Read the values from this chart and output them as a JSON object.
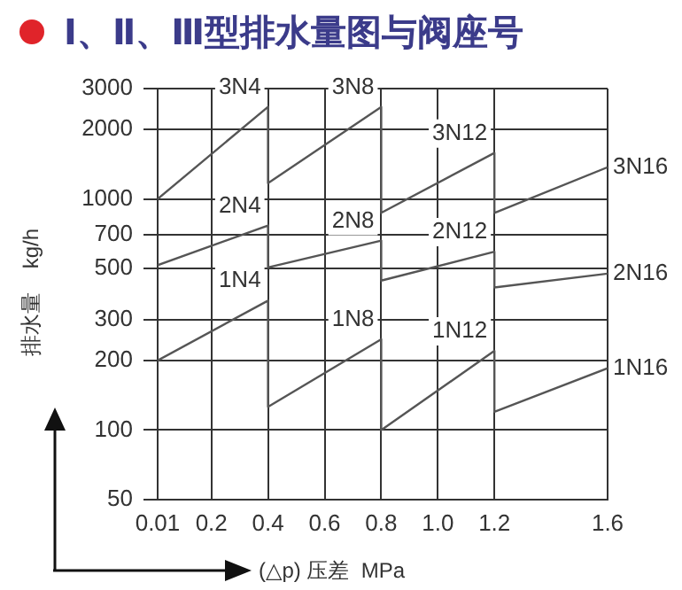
{
  "chart_data": {
    "type": "line",
    "title": "Ⅰ、Ⅱ、Ⅲ型排水量图与阀座号",
    "xlabel": "(△p) 压差  MPa",
    "ylabel": "排水量    kg/h",
    "xlim": [
      0.01,
      1.6
    ],
    "xticks": [
      0.01,
      0.2,
      0.4,
      0.6,
      0.8,
      {
        "value": 1,
        "label": "1.0"
      },
      1.2,
      1.6
    ],
    "ylim": [
      50,
      3000
    ],
    "yticks": [
      50,
      100,
      200,
      300,
      500,
      700,
      1000,
      2000,
      3000
    ],
    "grid": true,
    "legend": false,
    "log": "y",
    "series": [
      {
        "color": "#555555",
        "x": [
          0.01,
          0.4,
          0.4,
          0.8,
          0.8,
          1.2,
          1.2,
          1.6
        ],
        "values": [
          1000,
          2500,
          1170,
          2500,
          870,
          1580,
          870,
          1370
        ]
      },
      {
        "color": "#555555",
        "x": [
          0.01,
          0.4,
          0.4,
          0.8,
          0.8,
          1.2,
          1.2,
          1.6
        ],
        "values": [
          517,
          767,
          505,
          660,
          443,
          591,
          414,
          475
        ]
      },
      {
        "color": "#555555",
        "x": [
          0.01,
          0.4,
          0.4,
          0.8,
          0.8,
          1.2,
          1.2,
          1.6
        ],
        "values": [
          200,
          363,
          126,
          247,
          100,
          220,
          120,
          185
        ]
      }
    ],
    "annotations": [
      {
        "text": "3N4",
        "x": 0.4,
        "y": 2500
      },
      {
        "text": "3N8",
        "x": 0.8,
        "y": 2500
      },
      {
        "text": "3N12",
        "x": 1.2,
        "y": 1580
      },
      {
        "text": "3N16",
        "x": 1.6,
        "y": 1370
      },
      {
        "text": "2N4",
        "x": 0.4,
        "y": 767
      },
      {
        "text": "2N8",
        "x": 0.8,
        "y": 660
      },
      {
        "text": "2N12",
        "x": 1.2,
        "y": 591
      },
      {
        "text": "2N16",
        "x": 1.6,
        "y": 475
      },
      {
        "text": "1N4",
        "x": 0.4,
        "y": 363
      },
      {
        "text": "1N8",
        "x": 0.8,
        "y": 247
      },
      {
        "text": "1N12",
        "x": 1.2,
        "y": 220
      },
      {
        "text": "1N16",
        "x": 1.6,
        "y": 185
      }
    ]
  }
}
